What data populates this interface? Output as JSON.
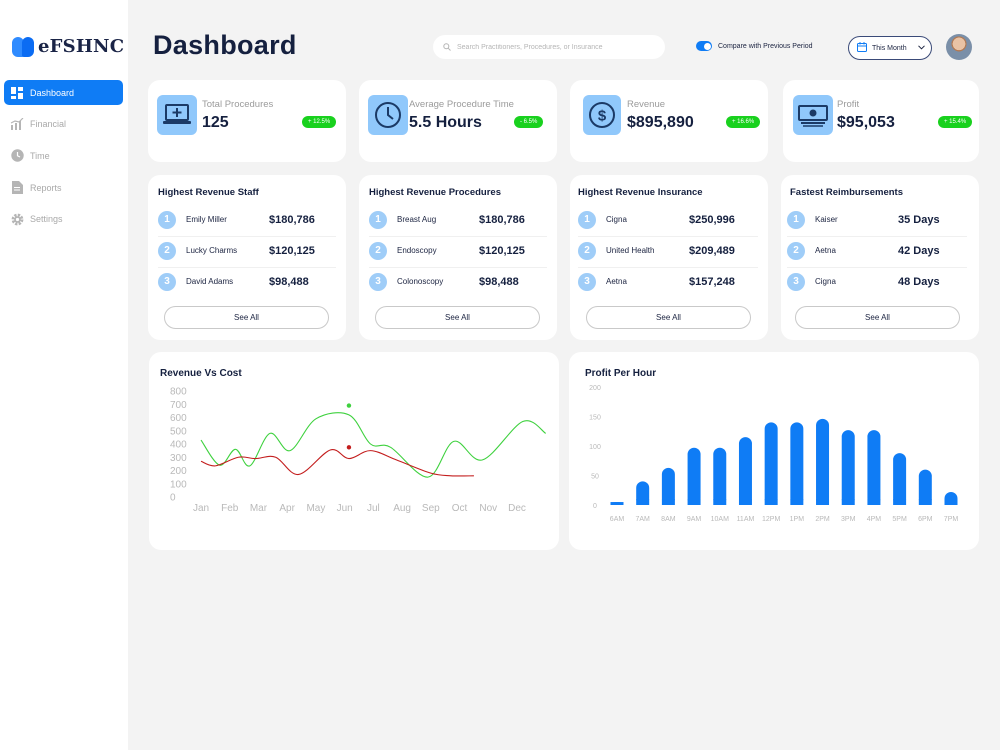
{
  "app": {
    "logo_text": "eFSHNC"
  },
  "sidebar": {
    "items": [
      {
        "label": "Dashboard",
        "icon": "grid-icon",
        "active": true
      },
      {
        "label": "Financial",
        "icon": "chart-icon",
        "active": false
      },
      {
        "label": "Time",
        "icon": "clock-icon",
        "active": false
      },
      {
        "label": "Reports",
        "icon": "document-icon",
        "active": false
      },
      {
        "label": "Settings",
        "icon": "gear-icon",
        "active": false
      }
    ]
  },
  "header": {
    "title": "Dashboard",
    "search_placeholder": "Search Practitioners, Procedures, or Insurance",
    "compare_label": "Compare with Previous Period",
    "compare_on": true,
    "period_label": "This Month"
  },
  "kpis": [
    {
      "label": "Total Procedures",
      "value": "125",
      "change": "+ 12.5%",
      "icon": "laptop-medical-icon"
    },
    {
      "label": "Average Procedure Time",
      "value": "5.5 Hours",
      "change": "- 6.5%",
      "icon": "clock-icon"
    },
    {
      "label": "Revenue",
      "value": "$895,890",
      "change": "+ 16.6%",
      "icon": "dollar-icon"
    },
    {
      "label": "Profit",
      "value": "$95,053",
      "change": "+ 15.4%",
      "icon": "money-icon"
    }
  ],
  "lists": [
    {
      "title": "Highest Revenue Staff",
      "rows": [
        {
          "rank": "1",
          "name": "Emily Miller",
          "value": "$180,786"
        },
        {
          "rank": "2",
          "name": "Lucky Charms",
          "value": "$120,125"
        },
        {
          "rank": "3",
          "name": "David Adams",
          "value": "$98,488"
        }
      ],
      "button": "See All"
    },
    {
      "title": "Highest Revenue Procedures",
      "rows": [
        {
          "rank": "1",
          "name": "Breast Aug",
          "value": "$180,786"
        },
        {
          "rank": "2",
          "name": "Endoscopy",
          "value": "$120,125"
        },
        {
          "rank": "3",
          "name": "Colonoscopy",
          "value": "$98,488"
        }
      ],
      "button": "See All"
    },
    {
      "title": "Highest Revenue Insurance",
      "rows": [
        {
          "rank": "1",
          "name": "Cigna",
          "value": "$250,996"
        },
        {
          "rank": "2",
          "name": "United Health",
          "value": "$209,489"
        },
        {
          "rank": "3",
          "name": "Aetna",
          "value": "$157,248"
        }
      ],
      "button": "See All"
    },
    {
      "title": "Fastest Reimbursements",
      "rows": [
        {
          "rank": "1",
          "name": "Kaiser",
          "value": "35 Days"
        },
        {
          "rank": "2",
          "name": "Aetna",
          "value": "42 Days"
        },
        {
          "rank": "3",
          "name": "Cigna",
          "value": "48 Days"
        }
      ],
      "button": "See All"
    }
  ],
  "chart_data": [
    {
      "type": "line",
      "title": "Revenue Vs Cost",
      "categories": [
        "Jan",
        "Feb",
        "Mar",
        "Apr",
        "May",
        "Jun",
        "Jul",
        "Aug",
        "Sep",
        "Oct",
        "Nov",
        "Dec"
      ],
      "y_ticks": [
        0,
        100,
        200,
        300,
        400,
        500,
        600,
        700,
        800
      ],
      "ylim": [
        0,
        800
      ],
      "series": [
        {
          "color": "#3ed13e",
          "values": [
            430,
            240,
            360,
            235,
            480,
            350,
            590,
            620,
            400,
            375,
            150,
            420,
            280,
            570,
            480
          ],
          "x": [
            0,
            0.65,
            1.2,
            1.7,
            2.4,
            3.1,
            4.0,
            5.15,
            5.9,
            6.6,
            7.9,
            8.8,
            9.8,
            11.2,
            12
          ],
          "highlight": {
            "x": 5.15,
            "y": 690
          }
        },
        {
          "color": "#c31d1d",
          "values": [
            270,
            235,
            300,
            290,
            300,
            170,
            355,
            290,
            350,
            280,
            180,
            160,
            160
          ],
          "x": [
            0,
            0.5,
            1.3,
            1.9,
            2.6,
            3.4,
            4.5,
            5.15,
            5.9,
            6.8,
            8.0,
            8.7,
            9.5
          ],
          "highlight": {
            "x": 5.15,
            "y": 375
          }
        }
      ],
      "grid": false,
      "legend": "none"
    },
    {
      "type": "bar",
      "title": "Profit Per Hour",
      "categories": [
        "6AM",
        "7AM",
        "8AM",
        "9AM",
        "10AM",
        "11AM",
        "12PM",
        "1PM",
        "2PM",
        "3PM",
        "4PM",
        "5PM",
        "6PM",
        "7PM"
      ],
      "values": [
        5,
        40,
        63,
        97,
        97,
        115,
        140,
        140,
        146,
        127,
        127,
        88,
        60,
        22
      ],
      "y_ticks": [
        0,
        50,
        100,
        150,
        200
      ],
      "ylim": [
        0,
        200
      ],
      "color": "#0f7cf5",
      "grid": false,
      "legend": "none"
    }
  ]
}
